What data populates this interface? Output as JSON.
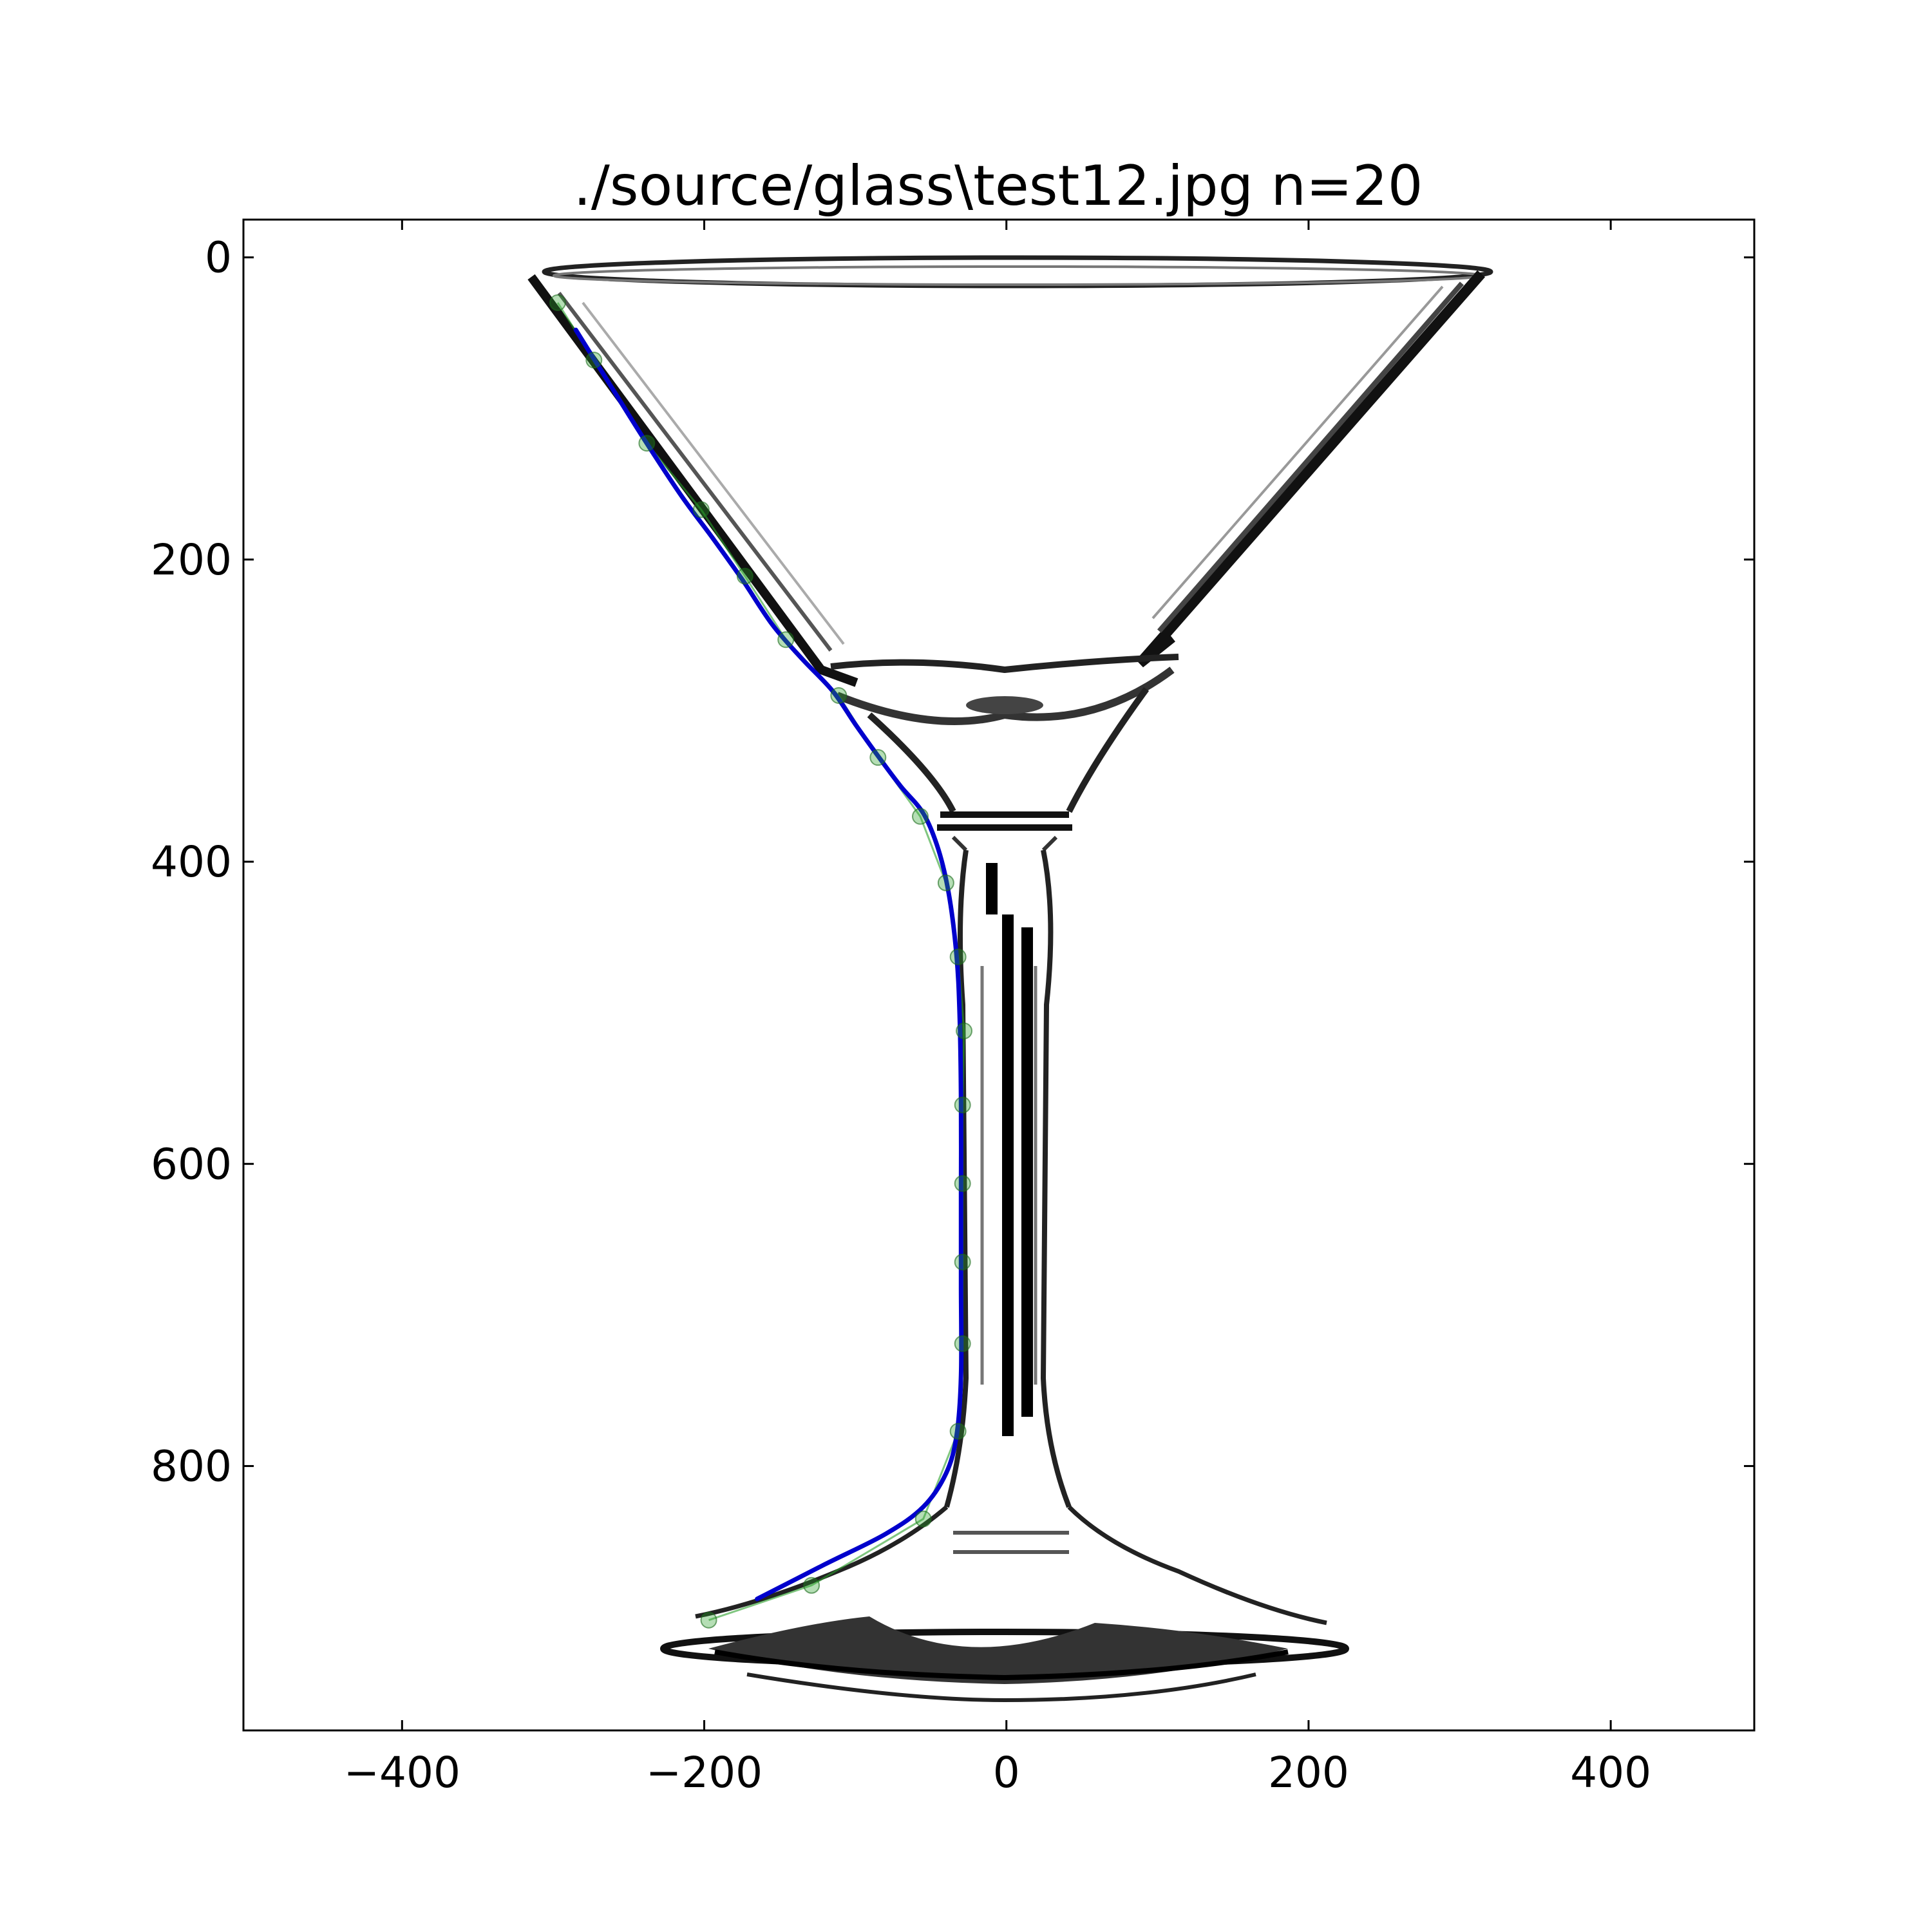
{
  "chart_data": {
    "type": "line",
    "title": "./source/glass\\test12.jpg n=20",
    "xlabel": "",
    "ylabel": "",
    "xlim": [
      -505,
      495
    ],
    "ylim": [
      975,
      -25
    ],
    "y_inverted": true,
    "grid": false,
    "legend": "none",
    "xticks": [
      -400,
      -200,
      0,
      200,
      400
    ],
    "xtick_labels": [
      "−400",
      "−200",
      "0",
      "200",
      "400"
    ],
    "yticks": [
      0,
      200,
      400,
      600,
      800
    ],
    "ytick_labels": [
      "0",
      "200",
      "400",
      "600",
      "800"
    ],
    "background": "photograph of a martini glass (grayscale, inverted edges) spanning the plot area",
    "series": [
      {
        "role": "control-points",
        "color": "#2ca02c",
        "marker": "circle",
        "points": [
          [
            -297,
            30
          ],
          [
            -273,
            68
          ],
          [
            -238,
            123
          ],
          [
            -202,
            167
          ],
          [
            -173,
            211
          ],
          [
            -146,
            253
          ],
          [
            -111,
            290
          ],
          [
            -85,
            331
          ],
          [
            -57,
            370
          ],
          [
            -40,
            414
          ],
          [
            -32,
            463
          ],
          [
            -28,
            512
          ],
          [
            -29,
            561
          ],
          [
            -29,
            613
          ],
          [
            -29,
            665
          ],
          [
            -29,
            719
          ],
          [
            -32,
            777
          ],
          [
            -55,
            835
          ],
          [
            -129,
            879
          ],
          [
            -197,
            902
          ]
        ]
      },
      {
        "role": "fitted-curve",
        "color": "#0000cc",
        "points": [
          [
            -285,
            48
          ],
          [
            -265,
            80
          ],
          [
            -240,
            120
          ],
          [
            -215,
            158
          ],
          [
            -195,
            185
          ],
          [
            -175,
            213
          ],
          [
            -155,
            243
          ],
          [
            -135,
            266
          ],
          [
            -115,
            287
          ],
          [
            -100,
            309
          ],
          [
            -85,
            330
          ],
          [
            -70,
            350
          ],
          [
            -55,
            368
          ],
          [
            -45,
            392
          ],
          [
            -38,
            422
          ],
          [
            -33,
            462
          ],
          [
            -31,
            500
          ],
          [
            -30,
            560
          ],
          [
            -30,
            620
          ],
          [
            -30,
            680
          ],
          [
            -30,
            740
          ],
          [
            -33,
            780
          ],
          [
            -40,
            805
          ],
          [
            -55,
            827
          ],
          [
            -80,
            845
          ],
          [
            -120,
            865
          ],
          [
            -165,
            888
          ]
        ]
      }
    ]
  }
}
